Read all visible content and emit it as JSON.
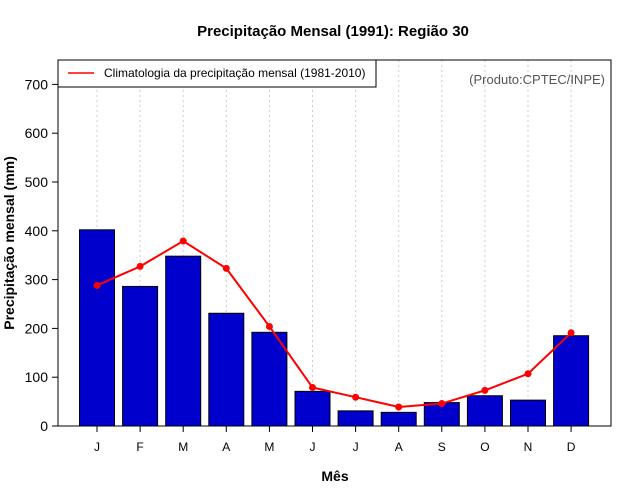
{
  "chart_data": {
    "type": "bar",
    "title": "Precipitação Mensal (1991): Região 30",
    "xlabel": "Mês",
    "ylabel": "Precipitação mensal (mm)",
    "credit": "(Produto:CPTEC/INPE)",
    "categories": [
      "J",
      "F",
      "M",
      "A",
      "M",
      "J",
      "J",
      "A",
      "S",
      "O",
      "N",
      "D"
    ],
    "ylim": [
      0,
      750
    ],
    "yticks": [
      0,
      100,
      200,
      300,
      400,
      500,
      600,
      700
    ],
    "series": [
      {
        "name": "Precipitação mensal (1991)",
        "kind": "bar",
        "color": "#0000cd",
        "values": [
          402,
          286,
          348,
          231,
          192,
          71,
          31,
          28,
          48,
          62,
          53,
          185
        ]
      },
      {
        "name": "Climatologia da precipitação mensal (1981-2010)",
        "kind": "line",
        "color": "#ff0000",
        "values": [
          288,
          327,
          379,
          323,
          204,
          79,
          59,
          39,
          46,
          73,
          107,
          191
        ]
      }
    ],
    "legend": {
      "position": "top-left",
      "entries": [
        "Climatologia da precipitação mensal (1981-2010)"
      ]
    },
    "grid": "vertical-dotted"
  }
}
